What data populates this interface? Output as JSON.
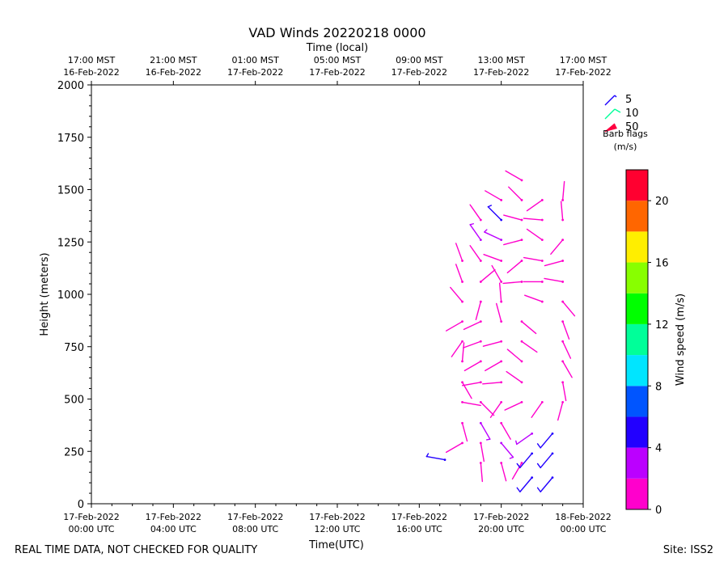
{
  "footer_left": "REAL TIME DATA, NOT CHECKED FOR QUALITY",
  "footer_right": "Site: ISS2",
  "chart_data": {
    "type": "scatter",
    "subtype": "wind-barbs",
    "title": "VAD Winds 20220218 0000",
    "xlabel": "Time(UTC)",
    "xlabel_top": "Time (local)",
    "ylabel": "Height (meters)",
    "xlim": [
      0,
      24
    ],
    "ylim": [
      0,
      2000
    ],
    "x_ticks": [
      {
        "x": 0,
        "line1": "17-Feb-2022",
        "line2": "00:00 UTC"
      },
      {
        "x": 4,
        "line1": "17-Feb-2022",
        "line2": "04:00 UTC"
      },
      {
        "x": 8,
        "line1": "17-Feb-2022",
        "line2": "08:00 UTC"
      },
      {
        "x": 12,
        "line1": "17-Feb-2022",
        "line2": "12:00 UTC"
      },
      {
        "x": 16,
        "line1": "17-Feb-2022",
        "line2": "16:00 UTC"
      },
      {
        "x": 20,
        "line1": "17-Feb-2022",
        "line2": "20:00 UTC"
      },
      {
        "x": 24,
        "line1": "18-Feb-2022",
        "line2": "00:00 UTC"
      }
    ],
    "x_ticks_top": [
      {
        "x": 0,
        "line1": "17:00 MST",
        "line2": "16-Feb-2022"
      },
      {
        "x": 4,
        "line1": "21:00 MST",
        "line2": "16-Feb-2022"
      },
      {
        "x": 8,
        "line1": "01:00 MST",
        "line2": "17-Feb-2022"
      },
      {
        "x": 12,
        "line1": "05:00 MST",
        "line2": "17-Feb-2022"
      },
      {
        "x": 16,
        "line1": "09:00 MST",
        "line2": "17-Feb-2022"
      },
      {
        "x": 20,
        "line1": "13:00 MST",
        "line2": "17-Feb-2022"
      },
      {
        "x": 24,
        "line1": "17:00 MST",
        "line2": "17-Feb-2022"
      }
    ],
    "y_ticks": [
      0,
      250,
      500,
      750,
      1000,
      1250,
      1500,
      1750,
      2000
    ],
    "legend": {
      "title_line1": "Barb flags",
      "title_line2": "(m/s)",
      "entries": [
        {
          "label": "5",
          "color": "#1a00ff"
        },
        {
          "label": "10",
          "color": "#00ff99"
        },
        {
          "label": "50",
          "color": "#ff0040"
        }
      ]
    },
    "colorbar": {
      "label": "Wind speed (m/s)",
      "min": 0,
      "max": 22,
      "ticks": [
        0,
        4,
        8,
        12,
        16,
        20
      ],
      "bands": [
        "#ff00cc",
        "#bb00ff",
        "#2200ff",
        "#0055ff",
        "#00e5ff",
        "#00ff99",
        "#00ff00",
        "#88ff00",
        "#ffee00",
        "#ff6600",
        "#ff0030"
      ]
    },
    "barbs": [
      {
        "t": 17.25,
        "h": 210,
        "dir": 280,
        "spd": 4.5
      },
      {
        "t": 18.1,
        "h": 1160,
        "dir": 340,
        "spd": 1.5
      },
      {
        "t": 18.1,
        "h": 1060,
        "dir": 340,
        "spd": 1.5
      },
      {
        "t": 18.1,
        "h": 965,
        "dir": 320,
        "spd": 1.5
      },
      {
        "t": 18.1,
        "h": 870,
        "dir": 240,
        "spd": 1.5
      },
      {
        "t": 18.1,
        "h": 775,
        "dir": 215,
        "spd": 1.5
      },
      {
        "t": 18.1,
        "h": 680,
        "dir": 5,
        "spd": 1.5
      },
      {
        "t": 18.1,
        "h": 580,
        "dir": 150,
        "spd": 1.5
      },
      {
        "t": 18.1,
        "h": 485,
        "dir": 100,
        "spd": 1.5
      },
      {
        "t": 18.1,
        "h": 385,
        "dir": 165,
        "spd": 1.5
      },
      {
        "t": 18.1,
        "h": 290,
        "dir": 240,
        "spd": 1.5
      },
      {
        "t": 19.0,
        "h": 1355,
        "dir": 325,
        "spd": 1.5
      },
      {
        "t": 19.0,
        "h": 1260,
        "dir": 325,
        "spd": 2.5
      },
      {
        "t": 19.0,
        "h": 1160,
        "dir": 325,
        "spd": 1.5
      },
      {
        "t": 19.0,
        "h": 1060,
        "dir": 50,
        "spd": 1.5
      },
      {
        "t": 19.0,
        "h": 965,
        "dir": 195,
        "spd": 1.5
      },
      {
        "t": 19.0,
        "h": 870,
        "dir": 245,
        "spd": 1.5
      },
      {
        "t": 19.0,
        "h": 775,
        "dir": 250,
        "spd": 1.5
      },
      {
        "t": 19.0,
        "h": 680,
        "dir": 240,
        "spd": 1.5
      },
      {
        "t": 19.0,
        "h": 580,
        "dir": 260,
        "spd": 1.5
      },
      {
        "t": 19.0,
        "h": 485,
        "dir": 135,
        "spd": 1.5
      },
      {
        "t": 19.0,
        "h": 385,
        "dir": 150,
        "spd": 3.5
      },
      {
        "t": 19.0,
        "h": 290,
        "dir": 170,
        "spd": 1.5
      },
      {
        "t": 19.0,
        "h": 195,
        "dir": 175,
        "spd": 1.5
      },
      {
        "t": 20.0,
        "h": 1450,
        "dir": 300,
        "spd": 1.5
      },
      {
        "t": 20.0,
        "h": 1355,
        "dir": 315,
        "spd": 4.5
      },
      {
        "t": 20.0,
        "h": 1260,
        "dir": 295,
        "spd": 3.5
      },
      {
        "t": 20.0,
        "h": 1160,
        "dir": 290,
        "spd": 1.5
      },
      {
        "t": 20.0,
        "h": 1060,
        "dir": 330,
        "spd": 1.5
      },
      {
        "t": 20.0,
        "h": 965,
        "dir": 355,
        "spd": 1.5
      },
      {
        "t": 20.0,
        "h": 870,
        "dir": 345,
        "spd": 1.5
      },
      {
        "t": 20.0,
        "h": 775,
        "dir": 255,
        "spd": 1.5
      },
      {
        "t": 20.0,
        "h": 680,
        "dir": 240,
        "spd": 1.5
      },
      {
        "t": 20.0,
        "h": 580,
        "dir": 265,
        "spd": 1.5
      },
      {
        "t": 20.0,
        "h": 485,
        "dir": 215,
        "spd": 1.5
      },
      {
        "t": 20.0,
        "h": 385,
        "dir": 150,
        "spd": 1.5
      },
      {
        "t": 20.0,
        "h": 290,
        "dir": 140,
        "spd": 3.5
      },
      {
        "t": 20.0,
        "h": 195,
        "dir": 165,
        "spd": 1.5
      },
      {
        "t": 21.0,
        "h": 1545,
        "dir": 300,
        "spd": 1.5
      },
      {
        "t": 21.0,
        "h": 1450,
        "dir": 315,
        "spd": 1.5
      },
      {
        "t": 21.0,
        "h": 1355,
        "dir": 285,
        "spd": 1.5
      },
      {
        "t": 21.0,
        "h": 1260,
        "dir": 255,
        "spd": 1.5
      },
      {
        "t": 21.0,
        "h": 1160,
        "dir": 230,
        "spd": 1.5
      },
      {
        "t": 21.0,
        "h": 1060,
        "dir": 265,
        "spd": 1.5
      },
      {
        "t": 21.0,
        "h": 870,
        "dir": 130,
        "spd": 1.5
      },
      {
        "t": 21.0,
        "h": 775,
        "dir": 125,
        "spd": 1.5
      },
      {
        "t": 21.0,
        "h": 680,
        "dir": 310,
        "spd": 1.5
      },
      {
        "t": 21.0,
        "h": 580,
        "dir": 305,
        "spd": 1.5
      },
      {
        "t": 21.0,
        "h": 485,
        "dir": 245,
        "spd": 1.5
      },
      {
        "t": 21.0,
        "h": 195,
        "dir": 210,
        "spd": 1.5
      },
      {
        "t": 21.5,
        "h": 335,
        "dir": 235,
        "spd": 3.5
      },
      {
        "t": 21.5,
        "h": 240,
        "dir": 220,
        "spd": 5.5
      },
      {
        "t": 21.5,
        "h": 125,
        "dir": 220,
        "spd": 5.5
      },
      {
        "t": 22.0,
        "h": 1450,
        "dir": 235,
        "spd": 1.5
      },
      {
        "t": 22.0,
        "h": 1355,
        "dir": 275,
        "spd": 1.5
      },
      {
        "t": 22.0,
        "h": 1260,
        "dir": 305,
        "spd": 1.5
      },
      {
        "t": 22.0,
        "h": 1160,
        "dir": 280,
        "spd": 1.5
      },
      {
        "t": 22.0,
        "h": 1060,
        "dir": 270,
        "spd": 1.5
      },
      {
        "t": 22.0,
        "h": 965,
        "dir": 290,
        "spd": 1.5
      },
      {
        "t": 22.0,
        "h": 485,
        "dir": 215,
        "spd": 1.5
      },
      {
        "t": 22.5,
        "h": 335,
        "dir": 220,
        "spd": 5.5
      },
      {
        "t": 22.5,
        "h": 240,
        "dir": 220,
        "spd": 5.5
      },
      {
        "t": 22.5,
        "h": 125,
        "dir": 220,
        "spd": 5.5
      },
      {
        "t": 23.0,
        "h": 1450,
        "dir": 5,
        "spd": 1.5
      },
      {
        "t": 23.0,
        "h": 1355,
        "dir": 355,
        "spd": 1.5
      },
      {
        "t": 23.0,
        "h": 1260,
        "dir": 220,
        "spd": 1.5
      },
      {
        "t": 23.0,
        "h": 1160,
        "dir": 255,
        "spd": 1.5
      },
      {
        "t": 23.0,
        "h": 1060,
        "dir": 280,
        "spd": 1.5
      },
      {
        "t": 23.0,
        "h": 965,
        "dir": 140,
        "spd": 1.5
      },
      {
        "t": 23.0,
        "h": 870,
        "dir": 160,
        "spd": 1.5
      },
      {
        "t": 23.0,
        "h": 775,
        "dir": 155,
        "spd": 1.5
      },
      {
        "t": 23.0,
        "h": 680,
        "dir": 150,
        "spd": 1.5
      },
      {
        "t": 23.0,
        "h": 580,
        "dir": 170,
        "spd": 1.5
      },
      {
        "t": 23.0,
        "h": 485,
        "dir": 195,
        "spd": 1.5
      }
    ]
  }
}
